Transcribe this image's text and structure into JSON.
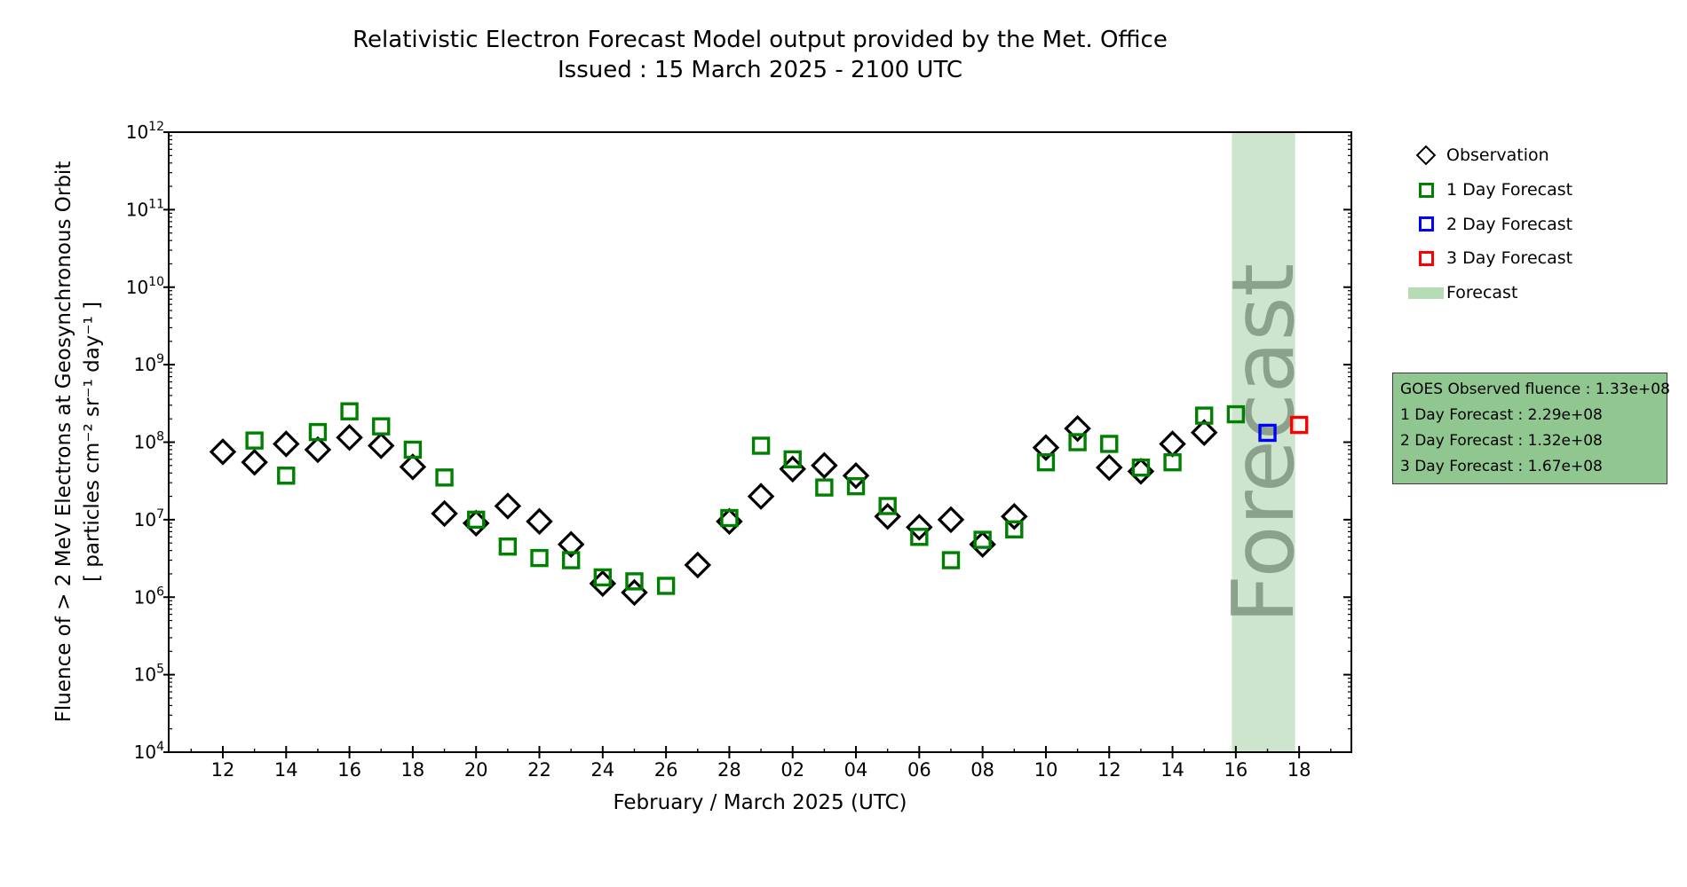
{
  "title": "Relativistic Electron Forecast Model output provided by the Met. Office",
  "subtitle": "Issued : 15 March 2025 - 2100 UTC",
  "axes": {
    "xlabel": "February / March 2025 (UTC)",
    "ylabel_line1": "Fluence of > 2 MeV Electrons at Geosynchronous Orbit",
    "ylabel_line2": "[ particles cm⁻² sr⁻¹ day⁻¹ ]"
  },
  "legend": {
    "items": [
      {
        "label": "Observation",
        "marker": "diamond",
        "color": "#000000"
      },
      {
        "label": "1 Day Forecast",
        "marker": "square",
        "color": "#008000"
      },
      {
        "label": "2 Day Forecast",
        "marker": "square",
        "color": "#0000ff"
      },
      {
        "label": "3 Day Forecast",
        "marker": "square",
        "color": "#ff0000"
      },
      {
        "label": "Forecast",
        "marker": "patch",
        "color": "#b5dcb5"
      }
    ]
  },
  "info_box": {
    "bg_color": "#90c790",
    "lines": [
      "GOES Observed fluence : 1.33e+08",
      "1 Day Forecast : 2.29e+08",
      "2 Day Forecast : 1.32e+08",
      "3 Day Forecast : 1.67e+08"
    ]
  },
  "chart_data": {
    "type": "scatter",
    "title": "Relativistic Electron Forecast Model output provided by the Met. Office",
    "subtitle": "Issued : 15 March 2025 - 2100 UTC",
    "xlabel": "February / March 2025 (UTC)",
    "ylabel": "Fluence of > 2 MeV Electrons at Geosynchronous Orbit [ particles cm-2 sr-1 day-1 ]",
    "y_scale": "log",
    "ylim": [
      10000.0,
      1000000000000.0
    ],
    "y_major_exponents": [
      4,
      5,
      6,
      7,
      8,
      9,
      10,
      11,
      12
    ],
    "x_axis_note": "day index 1 = 12 Feb 2025, 17 = 28 Feb 2025, 18 = 01 Mar 2025, 35 = 18 Mar 2025",
    "xlim": [
      -0.71,
      36.65
    ],
    "x_tick_days": [
      1,
      3,
      5,
      7,
      9,
      11,
      13,
      15,
      17,
      19,
      21,
      23,
      25,
      27,
      29,
      31,
      33,
      35
    ],
    "x_tick_labels": [
      "12",
      "14",
      "16",
      "18",
      "20",
      "22",
      "24",
      "26",
      "28",
      "02",
      "04",
      "06",
      "08",
      "10",
      "12",
      "14",
      "16",
      "18"
    ],
    "x_minor_days": [
      0,
      2,
      4,
      6,
      8,
      10,
      12,
      14,
      16,
      18,
      20,
      22,
      24,
      26,
      28,
      30,
      32,
      34,
      36
    ],
    "grid": false,
    "legend_position": "outside-upper-right",
    "forecast_band": {
      "from_day": 32.875,
      "to_day": 34.875,
      "color": "#cce5cc",
      "watermark": "Forecast",
      "watermark_color": "rgba(105,125,105,0.65)"
    },
    "series": [
      {
        "name": "Observation",
        "marker": "diamond",
        "color": "#000000",
        "points": [
          [
            1,
            75000000.0,
            "Feb 12"
          ],
          [
            2,
            55000000.0,
            "Feb 13"
          ],
          [
            3,
            95000000.0,
            "Feb 14"
          ],
          [
            4,
            80000000.0,
            "Feb 15"
          ],
          [
            5,
            115000000.0,
            "Feb 16"
          ],
          [
            6,
            90000000.0,
            "Feb 17"
          ],
          [
            7,
            48000000.0,
            "Feb 18"
          ],
          [
            8,
            12000000.0,
            "Feb 19"
          ],
          [
            9,
            9000000.0,
            "Feb 20"
          ],
          [
            10,
            15000000.0,
            "Feb 21"
          ],
          [
            11,
            9500000.0,
            "Feb 22"
          ],
          [
            12,
            4800000.0,
            "Feb 23"
          ],
          [
            13,
            1500000.0,
            "Feb 24"
          ],
          [
            14,
            1150000.0,
            "Feb 25"
          ],
          [
            16,
            2600000.0,
            "Feb 27"
          ],
          [
            17,
            9500000.0,
            "Feb 28"
          ],
          [
            18,
            20000000.0,
            "Mar 01"
          ],
          [
            19,
            45000000.0,
            "Mar 02"
          ],
          [
            20,
            50000000.0,
            "Mar 03"
          ],
          [
            21,
            37000000.0,
            "Mar 04"
          ],
          [
            22,
            11000000.0,
            "Mar 05"
          ],
          [
            23,
            8000000.0,
            "Mar 06"
          ],
          [
            24,
            10000000.0,
            "Mar 07"
          ],
          [
            25,
            4800000.0,
            "Mar 08"
          ],
          [
            26,
            11000000.0,
            "Mar 09"
          ],
          [
            27,
            85000000.0,
            "Mar 10"
          ],
          [
            28,
            150000000.0,
            "Mar 11"
          ],
          [
            29,
            47000000.0,
            "Mar 12"
          ],
          [
            30,
            42000000.0,
            "Mar 13"
          ],
          [
            31,
            95000000.0,
            "Mar 14"
          ],
          [
            32,
            133000000.0,
            "Mar 15"
          ]
        ]
      },
      {
        "name": "1 Day Forecast",
        "marker": "square",
        "color": "#008000",
        "points": [
          [
            2,
            105000000.0,
            "Feb 13"
          ],
          [
            3,
            37000000.0,
            "Feb 14"
          ],
          [
            4,
            135000000.0,
            "Feb 15"
          ],
          [
            5,
            250000000.0,
            "Feb 16"
          ],
          [
            6,
            160000000.0,
            "Feb 17"
          ],
          [
            7,
            80000000.0,
            "Feb 18"
          ],
          [
            8,
            35000000.0,
            "Feb 19"
          ],
          [
            9,
            10000000.0,
            "Feb 20"
          ],
          [
            10,
            4500000.0,
            "Feb 21"
          ],
          [
            11,
            3200000.0,
            "Feb 22"
          ],
          [
            12,
            3000000.0,
            "Feb 23"
          ],
          [
            13,
            1800000.0,
            "Feb 24"
          ],
          [
            14,
            1600000.0,
            "Feb 25"
          ],
          [
            15,
            1400000.0,
            "Feb 26"
          ],
          [
            17,
            10500000.0,
            "Feb 28"
          ],
          [
            18,
            90000000.0,
            "Mar 01"
          ],
          [
            19,
            60000000.0,
            "Mar 02"
          ],
          [
            20,
            26000000.0,
            "Mar 03"
          ],
          [
            21,
            27000000.0,
            "Mar 04"
          ],
          [
            22,
            15000000.0,
            "Mar 05"
          ],
          [
            23,
            6000000.0,
            "Mar 06"
          ],
          [
            24,
            3000000.0,
            "Mar 07"
          ],
          [
            25,
            5500000.0,
            "Mar 08"
          ],
          [
            26,
            7500000.0,
            "Mar 09"
          ],
          [
            27,
            55000000.0,
            "Mar 10"
          ],
          [
            28,
            100000000.0,
            "Mar 11"
          ],
          [
            29,
            95000000.0,
            "Mar 12"
          ],
          [
            30,
            47000000.0,
            "Mar 13"
          ],
          [
            31,
            55000000.0,
            "Mar 14"
          ],
          [
            32,
            220000000.0,
            "Mar 15"
          ],
          [
            33,
            229000000.0,
            "Mar 16"
          ]
        ]
      },
      {
        "name": "2 Day Forecast",
        "marker": "square",
        "color": "#0000ff",
        "points": [
          [
            34,
            132000000.0,
            "Mar 17"
          ]
        ]
      },
      {
        "name": "3 Day Forecast",
        "marker": "square",
        "color": "#ff0000",
        "points": [
          [
            35,
            167000000.0,
            "Mar 18"
          ]
        ]
      }
    ]
  }
}
